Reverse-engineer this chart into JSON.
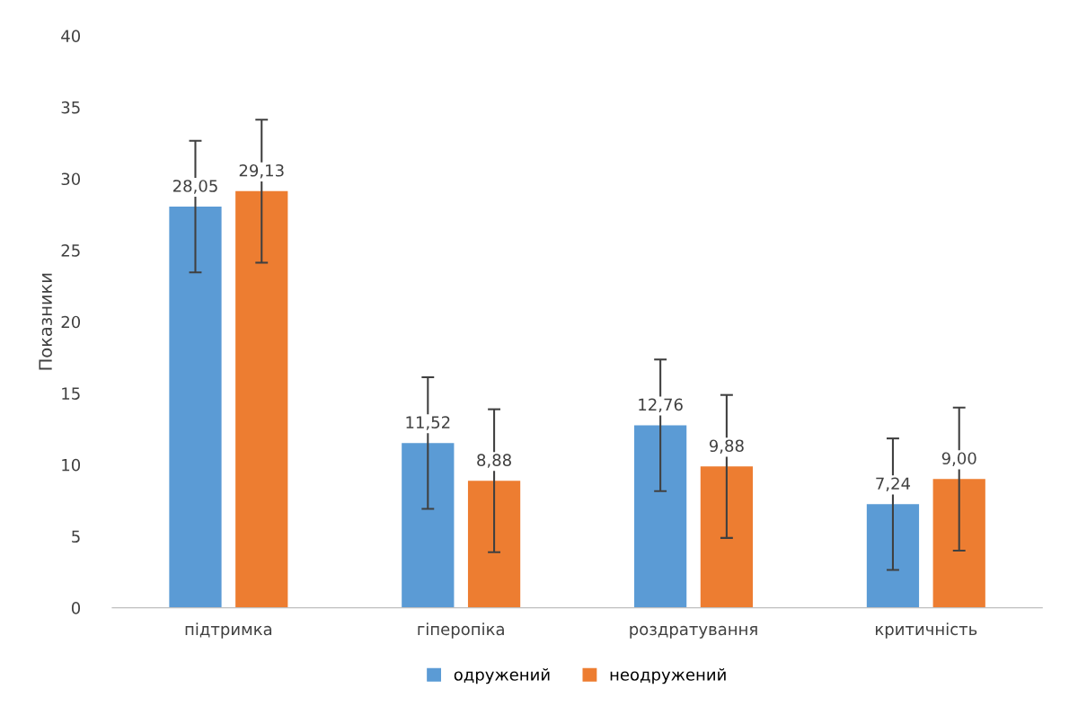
{
  "chart_data": {
    "type": "bar",
    "ylabel": "Показники",
    "categories": [
      "підтримка",
      "гіперопіка",
      "роздратування",
      "критичність"
    ],
    "series": [
      {
        "name": "одружений",
        "color": "#5b9bd5",
        "values": [
          28.05,
          11.52,
          12.76,
          7.24
        ],
        "value_labels": [
          "28,05",
          "11,52",
          "12,76",
          "7,24"
        ],
        "errors": [
          4.6,
          4.6,
          4.6,
          4.6
        ]
      },
      {
        "name": "неодружений",
        "color": "#ed7d31",
        "values": [
          29.13,
          8.88,
          9.88,
          9.0
        ],
        "value_labels": [
          "29,13",
          "8,88",
          "9,88",
          "9,00"
        ],
        "errors": [
          5,
          5,
          5,
          5
        ]
      }
    ],
    "ylim": [
      0,
      40
    ],
    "yticks": [
      0,
      5,
      10,
      15,
      20,
      25,
      30,
      35,
      40
    ],
    "grid": false,
    "legend": "bottom"
  }
}
